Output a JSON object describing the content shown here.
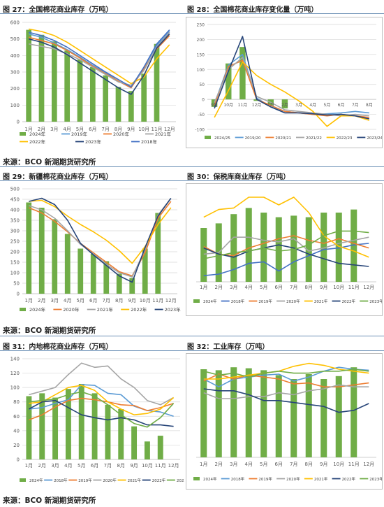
{
  "colors": {
    "bar_green": "#70ad47",
    "y2018_blue": "#4472c4",
    "y2019_lightblue": "#5b9bd5",
    "y2020_orange": "#ed7d31",
    "y2021_gray": "#a5a5a5",
    "y2022_yellow": "#ffc000",
    "y2023_navy": "#264478",
    "y2024_green": "#70ad47",
    "frame": "#7f7f7f"
  },
  "source": "来源：BCO 新湖期货研究所",
  "chart_data": [
    {
      "id": "fig27",
      "figure_title": "图 27：全国棉花商业库存（万吨）",
      "type": "bar+line",
      "categories": [
        "1月",
        "2月",
        "3月",
        "4月",
        "5月",
        "6月",
        "7月",
        "8月",
        "9月",
        "10月",
        "11月",
        "12月"
      ],
      "ylim": [
        0,
        600
      ],
      "yticks": [
        0,
        100,
        200,
        300,
        400,
        500,
        600
      ],
      "grid": true,
      "legend_placement": "bottom",
      "bar": {
        "name": "2024年",
        "color_key": "bar_green",
        "values": [
          555,
          525,
          485,
          430,
          375,
          330,
          280,
          210,
          185,
          290,
          470,
          null
        ]
      },
      "series": [
        {
          "name": "2019年",
          "color_key": "y2019_lightblue",
          "values": [
            530,
            510,
            475,
            435,
            390,
            340,
            295,
            245,
            205,
            330,
            460,
            545
          ]
        },
        {
          "name": "2020年",
          "color_key": "y2020_orange",
          "values": [
            510,
            490,
            470,
            430,
            385,
            335,
            290,
            245,
            205,
            320,
            440,
            520
          ]
        },
        {
          "name": "2021年",
          "color_key": "y2021_gray",
          "values": [
            470,
            455,
            440,
            410,
            375,
            330,
            285,
            240,
            220,
            310,
            450,
            540
          ]
        },
        {
          "name": "2022年",
          "color_key": "y2022_yellow",
          "values": [
            560,
            545,
            520,
            480,
            430,
            380,
            330,
            280,
            230,
            270,
            380,
            465
          ]
        },
        {
          "name": "2023年",
          "color_key": "y2023_navy",
          "values": [
            500,
            480,
            450,
            405,
            355,
            305,
            255,
            205,
            165,
            280,
            445,
            530
          ]
        },
        {
          "name": "2018年",
          "color_key": "y2018_blue",
          "values": [
            540,
            520,
            490,
            450,
            400,
            350,
            300,
            255,
            210,
            330,
            470,
            555
          ]
        }
      ]
    },
    {
      "id": "fig28",
      "figure_title": "图 28：全国棉花商业库存变化量（万吨）",
      "type": "bar+line",
      "categories": [
        "9月",
        "10月",
        "11月",
        "12月",
        "1月",
        "2月",
        "3月",
        "4月",
        "5月",
        "6月",
        "7月",
        "8月"
      ],
      "x_tick_labels": [
        "9月",
        "10月",
        "11月",
        "12月",
        "1月",
        "2月",
        "3月",
        "4月",
        "5月",
        "6月",
        "7月",
        "8月"
      ],
      "ylim": [
        -100,
        250
      ],
      "yticks": [
        -100,
        -50,
        0,
        50,
        100,
        150,
        200,
        250
      ],
      "grid": true,
      "legend_placement": "bottom",
      "bar": {
        "name": "2024/25",
        "color_key": "bar_green",
        "values": [
          -25,
          120,
          175,
          -5,
          -20,
          -30,
          null,
          null,
          null,
          null,
          null,
          null
        ]
      },
      "series": [
        {
          "name": "2019/20",
          "color_key": "y2019_lightblue",
          "values": [
            -15,
            115,
            150,
            5,
            -25,
            -40,
            -45,
            -50,
            -48,
            -45,
            -40,
            -45
          ]
        },
        {
          "name": "2020/21",
          "color_key": "y2020_orange",
          "values": [
            -20,
            110,
            130,
            0,
            -20,
            -40,
            -45,
            -50,
            -55,
            -50,
            -55,
            -60
          ]
        },
        {
          "name": "2021/22",
          "color_key": "y2021_gray",
          "values": [
            -10,
            100,
            140,
            10,
            -10,
            -35,
            -40,
            -45,
            -50,
            -55,
            -50,
            -55
          ]
        },
        {
          "name": "2022/23",
          "color_key": "y2022_yellow",
          "values": [
            -60,
            30,
            125,
            80,
            50,
            25,
            -5,
            -40,
            -90,
            -55,
            -55,
            -70
          ]
        },
        {
          "name": "2023/24",
          "color_key": "y2023_navy",
          "values": [
            -30,
            95,
            210,
            0,
            -25,
            -45,
            -45,
            -48,
            -52,
            -50,
            -55,
            -65
          ]
        }
      ]
    },
    {
      "id": "fig29",
      "figure_title": "图 29：新疆棉花商业库存（万吨）",
      "type": "bar+line",
      "categories": [
        "1月",
        "2月",
        "3月",
        "4月",
        "5月",
        "6月",
        "7月",
        "8月",
        "9月",
        "10月",
        "11月",
        "12月"
      ],
      "ylim": [
        0,
        500
      ],
      "yticks": [
        0,
        50,
        100,
        150,
        200,
        250,
        300,
        350,
        400,
        450,
        500
      ],
      "grid": true,
      "legend_placement": "bottom",
      "bar": {
        "name": "2024年",
        "color_key": "bar_green",
        "values": [
          435,
          410,
          355,
          285,
          215,
          190,
          155,
          95,
          75,
          215,
          385,
          null
        ]
      },
      "series": [
        {
          "name": "2020年",
          "color_key": "y2020_orange",
          "values": [
            410,
            385,
            345,
            295,
            240,
            195,
            150,
            105,
            85,
            195,
            360,
            440
          ]
        },
        {
          "name": "2021年",
          "color_key": "y2021_gray",
          "values": [
            420,
            400,
            360,
            300,
            235,
            190,
            140,
            100,
            80,
            210,
            375,
            455
          ]
        },
        {
          "name": "2022年",
          "color_key": "y2022_yellow",
          "values": [
            440,
            445,
            415,
            370,
            330,
            295,
            255,
            205,
            145,
            225,
            330,
            410
          ]
        },
        {
          "name": "2023年",
          "color_key": "y2023_navy",
          "values": [
            440,
            455,
            425,
            350,
            240,
            185,
            135,
            85,
            55,
            220,
            370,
            455
          ]
        }
      ]
    },
    {
      "id": "fig30",
      "figure_title": "图 30：保税库商业库存（万吨）",
      "type": "bar+line",
      "categories": [
        "1月",
        "2月",
        "3月",
        "4月",
        "5月",
        "6月",
        "7月",
        "8月",
        "9月",
        "10月",
        "11月",
        "12月"
      ],
      "grid": false,
      "legend_placement": "bottom",
      "bar": {
        "name": "2024年",
        "color_key": "bar_green",
        "values": [
          35,
          38,
          44,
          48,
          45,
          42,
          43,
          42,
          45,
          45,
          47,
          null
        ]
      },
      "series": [
        {
          "name": "2018年",
          "color_key": "y2018_blue",
          "values": [
            4,
            5,
            8,
            12,
            13,
            7,
            13,
            17,
            21,
            22,
            24,
            25
          ]
        },
        {
          "name": "2019年",
          "color_key": "y2019_orange_alt",
          "values": [
            23,
            18,
            17,
            22,
            25,
            28,
            30,
            27,
            25,
            28,
            25,
            22
          ]
        },
        {
          "name": "2020年",
          "color_key": "y2021_gray",
          "values": [
            18,
            19,
            29,
            29,
            27,
            26,
            28,
            20,
            22,
            25,
            27,
            29
          ]
        },
        {
          "name": "2021年",
          "color_key": "y2022_yellow",
          "values": [
            42,
            47,
            48,
            55,
            55,
            50,
            55,
            45,
            30,
            23,
            20,
            16
          ]
        },
        {
          "name": "2022年",
          "color_key": "y2023_navy",
          "values": [
            22,
            18,
            16,
            20,
            22,
            24,
            22,
            18,
            15,
            12,
            11,
            10
          ]
        },
        {
          "name": "2023年",
          "color_key": "y2024_green",
          "values": [
            15,
            17,
            19,
            20,
            22,
            20,
            21,
            24,
            30,
            33,
            33,
            32
          ]
        }
      ]
    },
    {
      "id": "fig31",
      "figure_title": "图 31：内地棉花商业库存（万吨）",
      "type": "bar+line",
      "categories": [
        "1月",
        "2月",
        "3月",
        "4月",
        "5月",
        "6月",
        "7月",
        "8月",
        "9月",
        "10月",
        "11月",
        "12月"
      ],
      "ylim": [
        0,
        140
      ],
      "yticks": [
        0,
        20,
        40,
        60,
        80,
        100,
        120,
        140
      ],
      "grid": true,
      "legend_placement": "bottom",
      "bar": {
        "name": "2024年",
        "color_key": "bar_green",
        "values": [
          88,
          92,
          86,
          98,
          105,
          92,
          76,
          70,
          46,
          25,
          33,
          null
        ]
      },
      "series": [
        {
          "name": "2018年",
          "color_key": "y2019_lightblue",
          "values": [
            70,
            72,
            78,
            83,
            104,
            103,
            92,
            90,
            74,
            68,
            66,
            60
          ]
        },
        {
          "name": "2019年",
          "color_key": "y2020_orange",
          "values": [
            55,
            62,
            73,
            82,
            85,
            83,
            80,
            76,
            75,
            68,
            72,
            78
          ]
        },
        {
          "name": "2020年",
          "color_key": "y2021_gray",
          "values": [
            90,
            95,
            100,
            118,
            134,
            128,
            130,
            112,
            100,
            82,
            76,
            86
          ]
        },
        {
          "name": "2021年",
          "color_key": "y2022_yellow",
          "values": [
            78,
            80,
            90,
            100,
            103,
            96,
            80,
            70,
            62,
            64,
            70,
            86
          ]
        },
        {
          "name": "2022年",
          "color_key": "y2023_navy",
          "values": [
            70,
            80,
            82,
            72,
            62,
            58,
            55,
            58,
            55,
            48,
            48,
            46
          ]
        },
        {
          "name": "2023年",
          "color_key": "y2024_green",
          "values": [
            80,
            82,
            84,
            90,
            94,
            88,
            76,
            62,
            50,
            45,
            58,
            78
          ]
        }
      ]
    },
    {
      "id": "fig32",
      "figure_title": "图 32：工业库存（万吨）",
      "type": "bar+line",
      "categories": [
        "1月",
        "2月",
        "3月",
        "4月",
        "5月",
        "6月",
        "7月",
        "8月",
        "9月",
        "10月",
        "11月",
        "12月"
      ],
      "grid": false,
      "legend_placement": "bottom",
      "bar": {
        "name": "2024年",
        "color_key": "bar_green",
        "values": [
          90,
          89,
          92,
          91,
          89,
          84,
          80,
          85,
          80,
          83,
          92,
          null
        ]
      },
      "series": [
        {
          "name": "2018年",
          "color_key": "y2019_lightblue",
          "values": [
            80,
            72,
            80,
            82,
            84,
            85,
            78,
            82,
            88,
            92,
            90,
            89
          ]
        },
        {
          "name": "2019年",
          "color_key": "y2020_orange",
          "values": [
            78,
            85,
            80,
            84,
            82,
            80,
            75,
            76,
            72,
            72,
            74,
            76
          ]
        },
        {
          "name": "2020年",
          "color_key": "y2021_gray",
          "values": [
            66,
            60,
            60,
            62,
            62,
            66,
            64,
            68,
            70,
            74,
            72,
            72
          ]
        },
        {
          "name": "2021年",
          "color_key": "y2022_yellow",
          "values": [
            80,
            80,
            82,
            84,
            86,
            88,
            93,
            96,
            94,
            90,
            88,
            86
          ]
        },
        {
          "name": "2022年",
          "color_key": "y2023_navy",
          "values": [
            70,
            68,
            68,
            64,
            58,
            58,
            56,
            54,
            52,
            46,
            48,
            55
          ]
        },
        {
          "name": "2023年",
          "color_key": "y2024_green",
          "values": [
            88,
            84,
            86,
            82,
            86,
            88,
            86,
            86,
            88,
            88,
            90,
            88
          ]
        }
      ]
    }
  ]
}
